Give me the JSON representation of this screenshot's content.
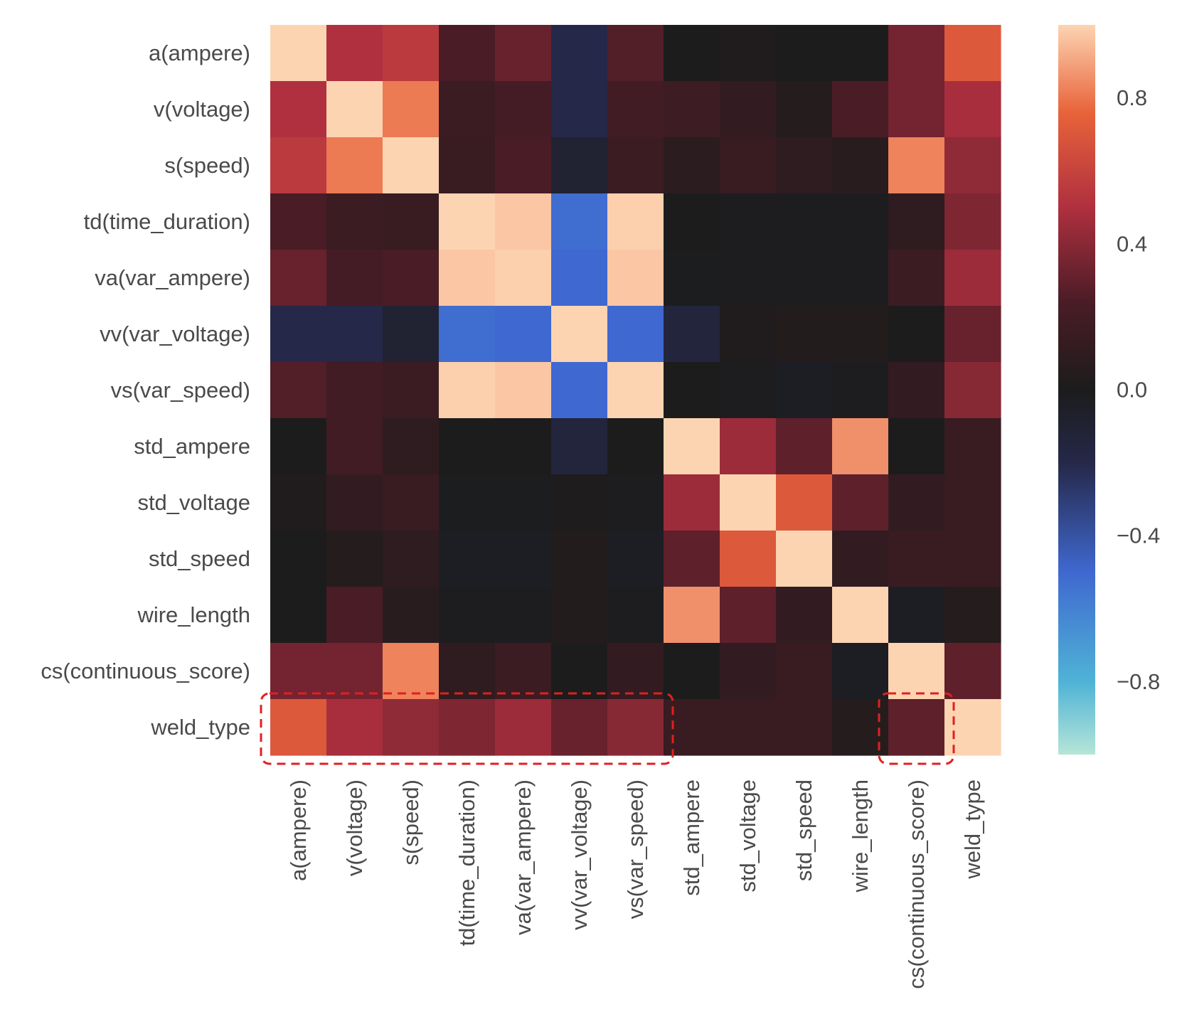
{
  "chart_data": {
    "type": "heatmap",
    "title": "",
    "xlabel": "",
    "ylabel": "",
    "labels": [
      "a(ampere)",
      "v(voltage)",
      "s(speed)",
      "td(time_duration)",
      "va(var_ampere)",
      "vv(var_voltage)",
      "vs(var_speed)",
      "std_ampere",
      "std_voltage",
      "std_speed",
      "wire_length",
      "cs(continuous_score)",
      "weld_type"
    ],
    "matrix": [
      [
        1.0,
        0.5,
        0.55,
        0.25,
        0.32,
        -0.2,
        0.27,
        0.0,
        0.02,
        0.0,
        0.0,
        0.35,
        0.7
      ],
      [
        0.5,
        1.0,
        0.8,
        0.17,
        0.22,
        -0.2,
        0.2,
        0.18,
        0.12,
        0.05,
        0.25,
        0.35,
        0.48
      ],
      [
        0.55,
        0.8,
        1.0,
        0.15,
        0.25,
        -0.1,
        0.17,
        0.08,
        0.15,
        0.1,
        0.07,
        0.82,
        0.42
      ],
      [
        0.25,
        0.17,
        0.15,
        1.0,
        0.97,
        -0.52,
        0.99,
        0.0,
        -0.02,
        -0.02,
        -0.02,
        0.1,
        0.38
      ],
      [
        0.32,
        0.22,
        0.25,
        0.97,
        0.99,
        -0.5,
        0.97,
        -0.01,
        -0.02,
        -0.02,
        -0.02,
        0.17,
        0.45
      ],
      [
        -0.2,
        -0.2,
        -0.1,
        -0.52,
        -0.5,
        1.0,
        -0.5,
        -0.15,
        0.02,
        0.03,
        0.03,
        0.0,
        0.32
      ],
      [
        0.27,
        0.2,
        0.17,
        0.99,
        0.97,
        -0.5,
        1.0,
        0.0,
        -0.02,
        -0.03,
        -0.02,
        0.12,
        0.4
      ],
      [
        0.0,
        0.2,
        0.1,
        0.0,
        0.0,
        -0.15,
        0.0,
        1.0,
        0.45,
        0.3,
        0.85,
        0.0,
        0.15
      ],
      [
        0.02,
        0.12,
        0.15,
        -0.01,
        -0.01,
        0.01,
        -0.02,
        0.45,
        1.0,
        0.7,
        0.3,
        0.12,
        0.15
      ],
      [
        0.0,
        0.05,
        0.1,
        -0.03,
        -0.03,
        0.03,
        -0.03,
        0.3,
        0.7,
        1.0,
        0.12,
        0.15,
        0.15
      ],
      [
        0.0,
        0.25,
        0.07,
        -0.02,
        -0.02,
        0.03,
        -0.02,
        0.85,
        0.3,
        0.12,
        1.0,
        -0.03,
        0.05
      ],
      [
        0.35,
        0.35,
        0.82,
        0.1,
        0.17,
        0.0,
        0.12,
        0.0,
        0.12,
        0.15,
        -0.03,
        1.0,
        0.3
      ],
      [
        0.7,
        0.48,
        0.42,
        0.38,
        0.45,
        0.32,
        0.4,
        0.15,
        0.15,
        0.15,
        0.05,
        0.3,
        1.0
      ]
    ],
    "value_range": [
      -1,
      1
    ],
    "colormap": "icefire",
    "colorbar": {
      "ticks": [
        0.8,
        0.4,
        0.0,
        -0.4,
        -0.8
      ],
      "tick_labels": [
        "0.8",
        "0.4",
        "0.0",
        "−0.4",
        "−0.8"
      ]
    },
    "highlights": [
      {
        "description": "dashed red box around weld_type row, columns a(ampere) to vs(var_speed)",
        "row": "weld_type",
        "col_from": "a(ampere)",
        "col_to": "vs(var_speed)",
        "color": "#e02020"
      },
      {
        "description": "dashed red box around weld_type row, column cs(continuous_score)",
        "row": "weld_type",
        "col_from": "cs(continuous_score)",
        "col_to": "cs(continuous_score)",
        "color": "#e02020"
      }
    ]
  }
}
